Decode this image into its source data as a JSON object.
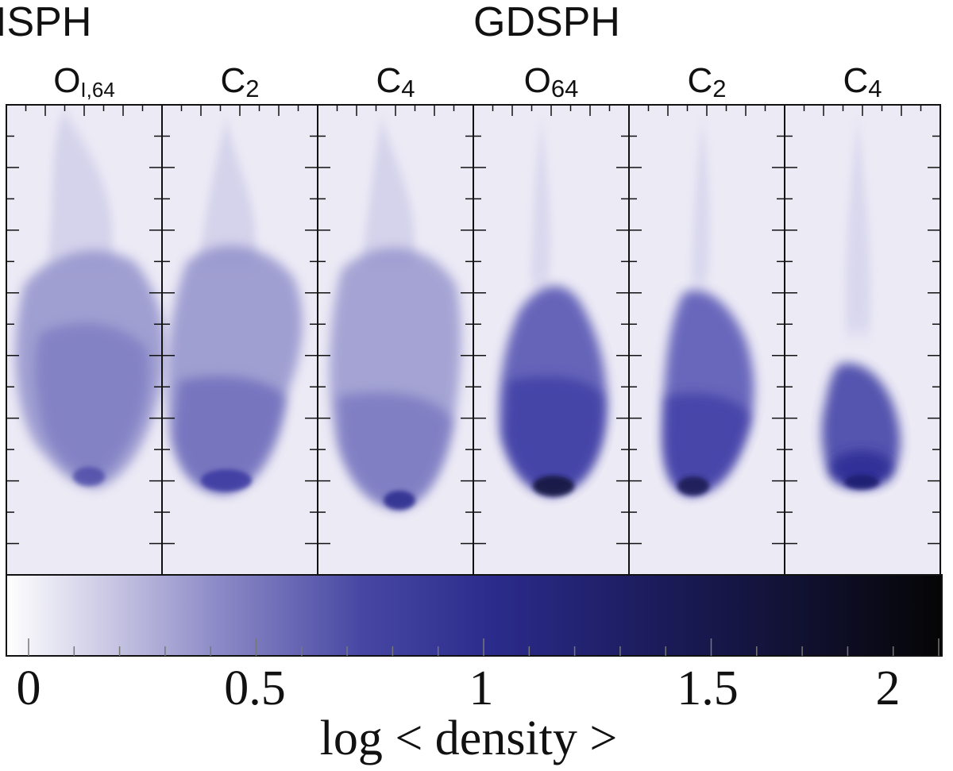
{
  "groups": [
    {
      "label": "ISPH"
    },
    {
      "label": "GDSPH"
    }
  ],
  "panels": [
    {
      "main": "O",
      "sub": "I,64",
      "group": "ISPH",
      "density_scale": 0.55
    },
    {
      "main": "C",
      "sub": "2",
      "group": "ISPH",
      "density_scale": 0.62
    },
    {
      "main": "C",
      "sub": "4",
      "group": "ISPH",
      "density_scale": 0.55
    },
    {
      "main": "O",
      "sub": "64",
      "group": "GDSPH",
      "density_scale": 0.9
    },
    {
      "main": "C",
      "sub": "2",
      "group": "GDSPH",
      "density_scale": 0.85
    },
    {
      "main": "C",
      "sub": "4",
      "group": "GDSPH",
      "density_scale": 0.95
    }
  ],
  "colorbar": {
    "label": "log < density >",
    "min": 0,
    "max": 2,
    "ticks": [
      "0",
      "0.5",
      "1",
      "1.5",
      "2"
    ],
    "colors": {
      "low": "#ffffff",
      "mid_low": "#9a9ad0",
      "mid": "#2e2e90",
      "high": "#101033",
      "max": "#000000"
    }
  },
  "background_color": "#eceaf5"
}
